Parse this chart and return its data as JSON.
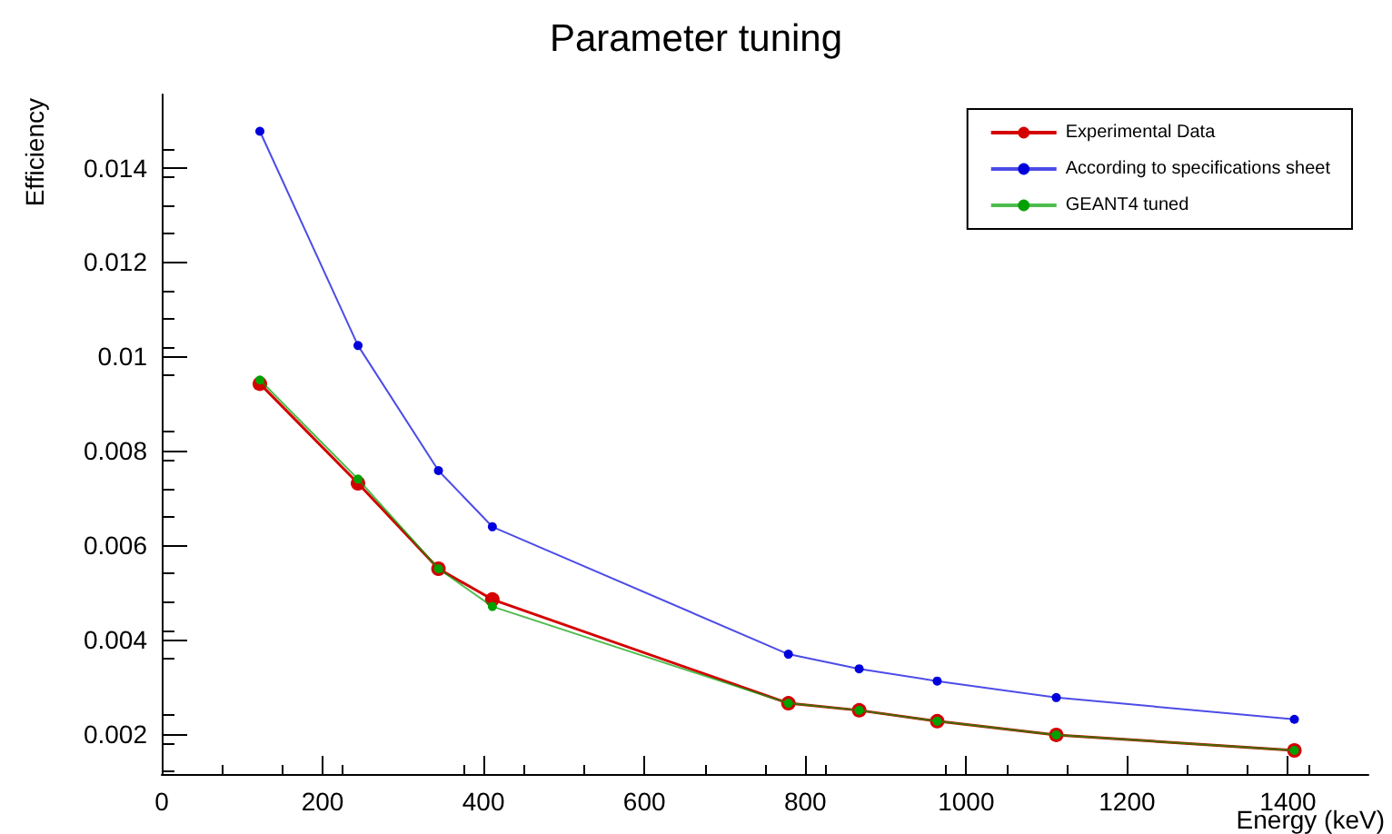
{
  "chart_data": {
    "type": "line",
    "title": "Parameter tuning",
    "xlabel": "Energy (keV)",
    "ylabel": "Efficiency",
    "xlim": [
      0,
      1500
    ],
    "xticks": [
      0,
      200,
      400,
      600,
      800,
      1000,
      1200,
      1400
    ],
    "ylim": [
      0.00115,
      0.01555
    ],
    "yticks": [
      0.002,
      0.004,
      0.006,
      0.008,
      0.01,
      0.012,
      0.014
    ],
    "grid": false,
    "legend": "top right",
    "marker": "circle",
    "line_style": "solid",
    "series": [
      {
        "name": "Experimental Data",
        "color": "#d40000",
        "x": [
          122,
          244,
          344,
          411,
          779,
          867,
          964,
          1112,
          1408
        ],
        "values": [
          0.00942,
          0.00731,
          0.0055,
          0.00485,
          0.00265,
          0.0025,
          0.00227,
          0.00198,
          0.00165
        ]
      },
      {
        "name": "According to specifications sheet",
        "color": "#0000dd",
        "x": [
          122,
          244,
          344,
          411,
          779,
          867,
          964,
          1112,
          1408
        ],
        "values": [
          0.01477,
          0.01023,
          0.00758,
          0.00639,
          0.00369,
          0.00338,
          0.00312,
          0.00277,
          0.00231
        ]
      },
      {
        "name": "GEANT4 tuned",
        "color": "#00a000",
        "x": [
          122,
          244,
          344,
          411,
          779,
          867,
          964,
          1112,
          1408
        ],
        "values": [
          0.0095,
          0.0074,
          0.0055,
          0.0047,
          0.00265,
          0.0025,
          0.00227,
          0.00198,
          0.00165
        ]
      }
    ]
  }
}
